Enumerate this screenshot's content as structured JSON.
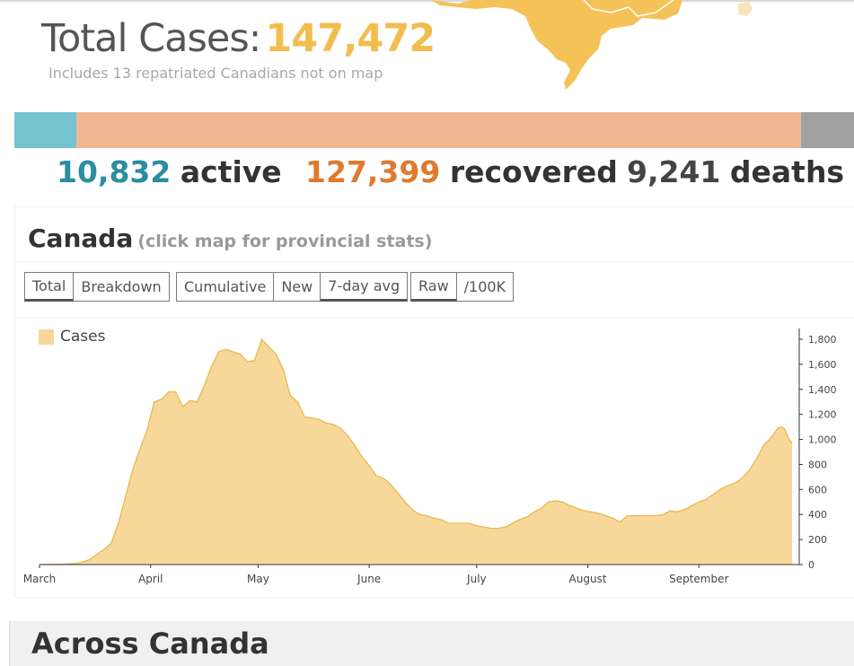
{
  "header": {
    "title_label": "Total Cases:",
    "title_value": "147,472",
    "subtitle": "Includes 13 repatriated Canadians not on map"
  },
  "status_bar": {
    "segments": [
      {
        "name": "active",
        "value": 10832,
        "color": "#74c3cf"
      },
      {
        "name": "recovered",
        "value": 127399,
        "color": "#f0b792"
      },
      {
        "name": "deaths",
        "value": 9241,
        "color": "#a0a0a0"
      }
    ]
  },
  "stats": {
    "active": {
      "value": "10,832",
      "label": "active",
      "color": "#2a8da0"
    },
    "recovered": {
      "value": "127,399",
      "label": "recovered",
      "color": "#e07a2e"
    },
    "deaths": {
      "value": "9,241",
      "label": "deaths",
      "color": "#444444"
    }
  },
  "panel": {
    "title": "Canada",
    "hint": "(click map for provincial stats)",
    "groups": [
      {
        "buttons": [
          {
            "label": "Total",
            "active": true
          },
          {
            "label": "Breakdown",
            "active": false
          }
        ]
      },
      {
        "buttons": [
          {
            "label": "Cumulative",
            "active": false
          },
          {
            "label": "New",
            "active": false
          },
          {
            "label": "7-day avg",
            "active": true
          }
        ]
      },
      {
        "buttons": [
          {
            "label": "Raw",
            "active": true
          },
          {
            "label": "/100K",
            "active": false
          }
        ]
      }
    ]
  },
  "chart_data": {
    "type": "area",
    "title": "",
    "xlabel": "",
    "ylabel": "",
    "series": [
      {
        "name": "Cases",
        "color": "#f8d89a",
        "stroke": "#e8b94c"
      }
    ],
    "ylim": [
      0,
      1800
    ],
    "y_ticks": [
      "0",
      "200",
      "400",
      "600",
      "800",
      "1,000",
      "1,200",
      "1,400",
      "1,600",
      "1,800"
    ],
    "x_ticks": [
      "March",
      "April",
      "May",
      "June",
      "July",
      "August",
      "September"
    ],
    "x_tick_days": [
      0,
      31,
      61,
      92,
      122,
      153,
      184
    ],
    "x_domain_days": [
      0,
      212
    ],
    "points": [
      [
        0,
        0
      ],
      [
        5,
        3
      ],
      [
        10,
        8
      ],
      [
        12,
        20
      ],
      [
        14,
        40
      ],
      [
        16,
        80
      ],
      [
        18,
        120
      ],
      [
        20,
        170
      ],
      [
        22,
        330
      ],
      [
        24,
        540
      ],
      [
        26,
        760
      ],
      [
        28,
        920
      ],
      [
        30,
        1070
      ],
      [
        32,
        1300
      ],
      [
        34,
        1320
      ],
      [
        36,
        1380
      ],
      [
        38,
        1380
      ],
      [
        40,
        1260
      ],
      [
        42,
        1310
      ],
      [
        44,
        1300
      ],
      [
        46,
        1430
      ],
      [
        48,
        1580
      ],
      [
        50,
        1700
      ],
      [
        52,
        1720
      ],
      [
        54,
        1700
      ],
      [
        56,
        1680
      ],
      [
        58,
        1620
      ],
      [
        60,
        1630
      ],
      [
        62,
        1800
      ],
      [
        64,
        1740
      ],
      [
        66,
        1680
      ],
      [
        68,
        1560
      ],
      [
        70,
        1350
      ],
      [
        72,
        1300
      ],
      [
        74,
        1180
      ],
      [
        76,
        1170
      ],
      [
        78,
        1160
      ],
      [
        80,
        1130
      ],
      [
        82,
        1120
      ],
      [
        84,
        1090
      ],
      [
        86,
        1030
      ],
      [
        88,
        950
      ],
      [
        90,
        860
      ],
      [
        92,
        790
      ],
      [
        94,
        710
      ],
      [
        96,
        690
      ],
      [
        98,
        640
      ],
      [
        100,
        570
      ],
      [
        102,
        500
      ],
      [
        104,
        440
      ],
      [
        106,
        400
      ],
      [
        108,
        390
      ],
      [
        110,
        370
      ],
      [
        112,
        360
      ],
      [
        114,
        330
      ],
      [
        116,
        330
      ],
      [
        118,
        330
      ],
      [
        120,
        330
      ],
      [
        122,
        310
      ],
      [
        124,
        300
      ],
      [
        126,
        290
      ],
      [
        128,
        290
      ],
      [
        130,
        300
      ],
      [
        132,
        330
      ],
      [
        134,
        360
      ],
      [
        136,
        380
      ],
      [
        138,
        420
      ],
      [
        140,
        450
      ],
      [
        142,
        500
      ],
      [
        144,
        510
      ],
      [
        146,
        500
      ],
      [
        148,
        470
      ],
      [
        150,
        450
      ],
      [
        152,
        430
      ],
      [
        154,
        420
      ],
      [
        156,
        410
      ],
      [
        158,
        390
      ],
      [
        160,
        370
      ],
      [
        162,
        340
      ],
      [
        164,
        390
      ],
      [
        166,
        390
      ],
      [
        168,
        390
      ],
      [
        170,
        390
      ],
      [
        172,
        390
      ],
      [
        174,
        400
      ],
      [
        176,
        430
      ],
      [
        178,
        420
      ],
      [
        180,
        440
      ],
      [
        182,
        470
      ],
      [
        184,
        500
      ],
      [
        186,
        520
      ],
      [
        188,
        560
      ],
      [
        190,
        600
      ],
      [
        192,
        630
      ],
      [
        194,
        650
      ],
      [
        196,
        690
      ],
      [
        198,
        750
      ],
      [
        200,
        840
      ],
      [
        202,
        950
      ],
      [
        204,
        1010
      ],
      [
        206,
        1090
      ],
      [
        207,
        1100
      ],
      [
        208,
        1080
      ],
      [
        209,
        1010
      ],
      [
        210,
        970
      ]
    ]
  },
  "across": {
    "title": "Across Canada"
  }
}
